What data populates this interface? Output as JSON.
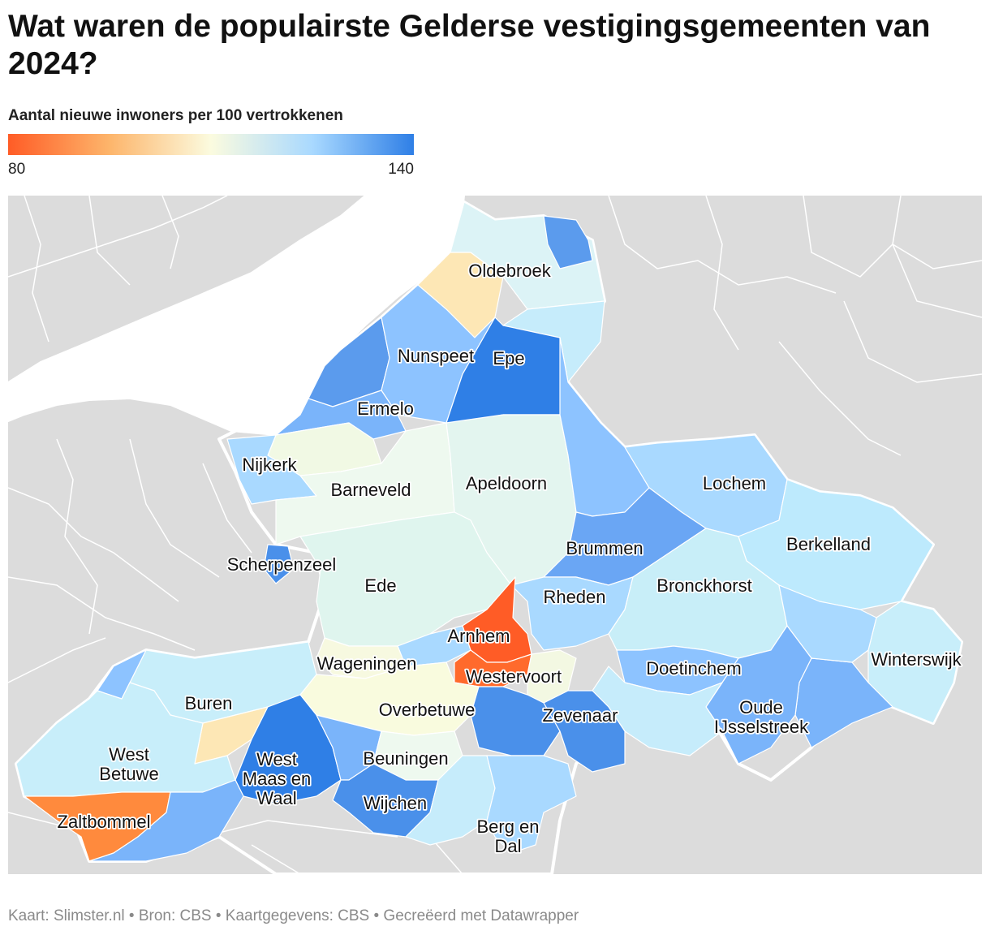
{
  "title": "Wat waren de populairste Gelderse vestigingsgemeenten van 2024?",
  "legend": {
    "title": "Aantal nieuwe inwoners per 100 vertrokkenen",
    "min": "80",
    "max": "140",
    "colors": [
      "#ff5c26",
      "#fdb56b",
      "#fbfbdf",
      "#a9d9ff",
      "#2f7fe6"
    ]
  },
  "background_colors": {
    "land": "#dcdcdc",
    "water": "#ffffff"
  },
  "municipalities": [
    {
      "name": "Oldebroek",
      "lines": [
        "Oldebroek"
      ],
      "color": "#dcf3f6"
    },
    {
      "name": "Nunspeet",
      "lines": [
        "Nunspeet"
      ],
      "color": "#8dc3ff"
    },
    {
      "name": "Epe",
      "lines": [
        "Epe"
      ],
      "color": "#2f7fe6"
    },
    {
      "name": "Ermelo",
      "lines": [
        "Ermelo"
      ],
      "color": "#7ab4fa"
    },
    {
      "name": "Nijkerk",
      "lines": [
        "Nijkerk"
      ],
      "color": "#a9d9ff"
    },
    {
      "name": "Barneveld",
      "lines": [
        "Barneveld"
      ],
      "color": "#eef9ef"
    },
    {
      "name": "Apeldoorn",
      "lines": [
        "Apeldoorn"
      ],
      "color": "#e3f5ef"
    },
    {
      "name": "Lochem",
      "lines": [
        "Lochem"
      ],
      "color": "#a9d9ff"
    },
    {
      "name": "Berkelland",
      "lines": [
        "Berkelland"
      ],
      "color": "#bdeafd"
    },
    {
      "name": "Brummen",
      "lines": [
        "Brummen"
      ],
      "color": "#6aa6f4"
    },
    {
      "name": "Scherpenzeel",
      "lines": [
        "Scherpenzeel"
      ],
      "color": "#4a90ea"
    },
    {
      "name": "Ede",
      "lines": [
        "Ede"
      ],
      "color": "#dff5ee"
    },
    {
      "name": "Rheden",
      "lines": [
        "Rheden"
      ],
      "color": "#a9d9ff"
    },
    {
      "name": "Bronckhorst",
      "lines": [
        "Bronckhorst"
      ],
      "color": "#c8eef8"
    },
    {
      "name": "Arnhem",
      "lines": [
        "Arnhem"
      ],
      "color": "#ff5c26"
    },
    {
      "name": "Wageningen",
      "lines": [
        "Wageningen"
      ],
      "color": "#f7f9e0"
    },
    {
      "name": "Westervoort",
      "lines": [
        "Westervoort"
      ],
      "color": "#ff6a2c"
    },
    {
      "name": "Doetinchem",
      "lines": [
        "Doetinchem"
      ],
      "color": "#8dc3ff"
    },
    {
      "name": "Winterswijk",
      "lines": [
        "Winterswijk"
      ],
      "color": "#c8eefa"
    },
    {
      "name": "Buren",
      "lines": [
        "Buren"
      ],
      "color": "#c8eefa"
    },
    {
      "name": "Overbetuwe",
      "lines": [
        "Overbetuwe"
      ],
      "color": "#f9fbde"
    },
    {
      "name": "Zevenaar",
      "lines": [
        "Zevenaar"
      ],
      "color": "#4a90ea"
    },
    {
      "name": "Oude IJsselstreek",
      "lines": [
        "Oude",
        "IJsselstreek"
      ],
      "color": "#7ab4fa"
    },
    {
      "name": "West Betuwe",
      "lines": [
        "West",
        "Betuwe"
      ],
      "color": "#c8eefa"
    },
    {
      "name": "West Maas en Waal",
      "lines": [
        "West",
        "Maas en",
        "Waal"
      ],
      "color": "#2f7fe6"
    },
    {
      "name": "Beuningen",
      "lines": [
        "Beuningen"
      ],
      "color": "#eef9ef"
    },
    {
      "name": "Wijchen",
      "lines": [
        "Wijchen"
      ],
      "color": "#4a90ea"
    },
    {
      "name": "Zaltbommel",
      "lines": [
        "Zaltbommel"
      ],
      "color": "#ff8a3d"
    },
    {
      "name": "Berg en Dal",
      "lines": [
        "Berg en",
        "Dal"
      ],
      "color": "#a9d9ff"
    }
  ],
  "footer": "Kaart: Slimster.nl • Bron: CBS • Kaartgegevens: CBS • Gecreëerd met Datawrapper"
}
